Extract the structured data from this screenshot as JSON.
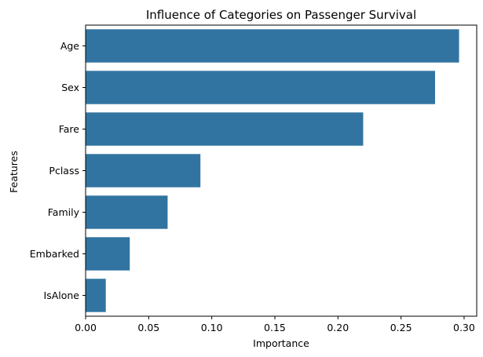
{
  "chart_data": {
    "type": "bar",
    "orientation": "horizontal",
    "title": "Influence of Categories on Passenger Survival",
    "xlabel": "Importance",
    "ylabel": "Features",
    "categories": [
      "Age",
      "Sex",
      "Fare",
      "Pclass",
      "Family",
      "Embarked",
      "IsAlone"
    ],
    "values": [
      0.296,
      0.277,
      0.22,
      0.091,
      0.065,
      0.035,
      0.016
    ],
    "xlim": [
      0,
      0.31
    ],
    "xticks": [
      0.0,
      0.05,
      0.1,
      0.15,
      0.2,
      0.25,
      0.3
    ],
    "xtick_labels": [
      "0.00",
      "0.05",
      "0.10",
      "0.15",
      "0.20",
      "0.25",
      "0.30"
    ],
    "grid": false,
    "bar_color": "#3274a1"
  }
}
